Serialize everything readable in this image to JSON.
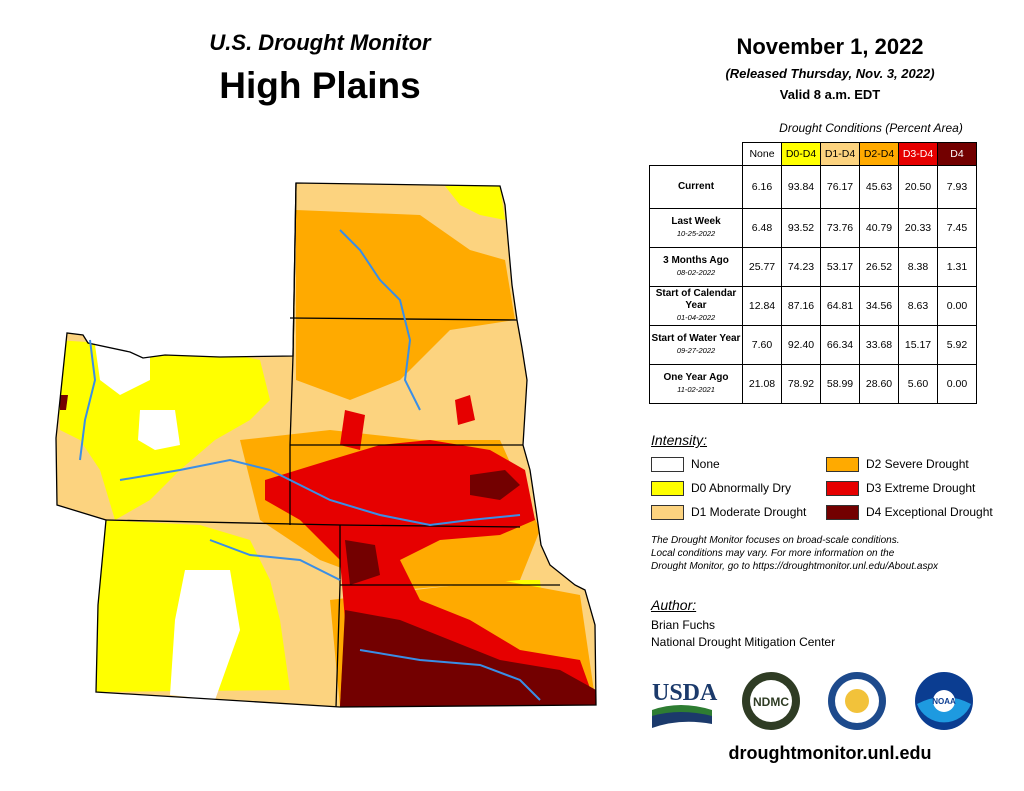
{
  "header": {
    "title_top": "U.S. Drought Monitor",
    "title_region": "High Plains",
    "date": "November 1, 2022",
    "released": "(Released Thursday, Nov. 3, 2022)",
    "valid": "Valid 8 a.m. EDT"
  },
  "table": {
    "caption": "Drought Conditions (Percent Area)",
    "columns": [
      {
        "label": "None",
        "color": "#ffffff"
      },
      {
        "label": "D0-D4",
        "color": "#ffff00"
      },
      {
        "label": "D1-D4",
        "color": "#fcd37f"
      },
      {
        "label": "D2-D4",
        "color": "#ffaa00"
      },
      {
        "label": "D3-D4",
        "color": "#e60000"
      },
      {
        "label": "D4",
        "color": "#730000"
      }
    ],
    "rows": [
      {
        "label": "Current",
        "sub": "",
        "values": [
          "6.16",
          "93.84",
          "76.17",
          "45.63",
          "20.50",
          "7.93"
        ]
      },
      {
        "label": "Last Week",
        "sub": "10-25-2022",
        "values": [
          "6.48",
          "93.52",
          "73.76",
          "40.79",
          "20.33",
          "7.45"
        ]
      },
      {
        "label": "3 Months Ago",
        "sub": "08-02-2022",
        "values": [
          "25.77",
          "74.23",
          "53.17",
          "26.52",
          "8.38",
          "1.31"
        ]
      },
      {
        "label": "Start of Calendar Year",
        "sub": "01-04-2022",
        "values": [
          "12.84",
          "87.16",
          "64.81",
          "34.56",
          "8.63",
          "0.00"
        ]
      },
      {
        "label": "Start of Water Year",
        "sub": "09-27-2022",
        "values": [
          "7.60",
          "92.40",
          "66.34",
          "33.68",
          "15.17",
          "5.92"
        ]
      },
      {
        "label": "One Year Ago",
        "sub": "11-02-2021",
        "values": [
          "21.08",
          "78.92",
          "58.99",
          "28.60",
          "5.60",
          "0.00"
        ]
      }
    ]
  },
  "legend": {
    "title": "Intensity:",
    "items": [
      {
        "label": "None",
        "color": "#ffffff"
      },
      {
        "label": "D0 Abnormally Dry",
        "color": "#ffff00"
      },
      {
        "label": "D1 Moderate Drought",
        "color": "#fcd37f"
      },
      {
        "label": "D2 Severe Drought",
        "color": "#ffaa00"
      },
      {
        "label": "D3 Extreme Drought",
        "color": "#e60000"
      },
      {
        "label": "D4 Exceptional Drought",
        "color": "#730000"
      }
    ]
  },
  "note": {
    "line1": "The Drought Monitor focuses on broad-scale conditions.",
    "line2": "Local conditions may vary. For more information on the",
    "line3": "Drought Monitor, go to https://droughtmonitor.unl.edu/About.aspx"
  },
  "author": {
    "heading": "Author:",
    "name": "Brian Fuchs",
    "org": "National Drought Mitigation Center"
  },
  "logos": {
    "usda": "USDA",
    "ndmc": "NDMC",
    "noaa": "NOAA"
  },
  "footer": {
    "url": "droughtmonitor.unl.edu"
  },
  "map_colors": {
    "none": "#ffffff",
    "d0": "#ffff00",
    "d1": "#fcd37f",
    "d2": "#ffaa00",
    "d3": "#e60000",
    "d4": "#730000",
    "water": "#3a8ee6"
  }
}
